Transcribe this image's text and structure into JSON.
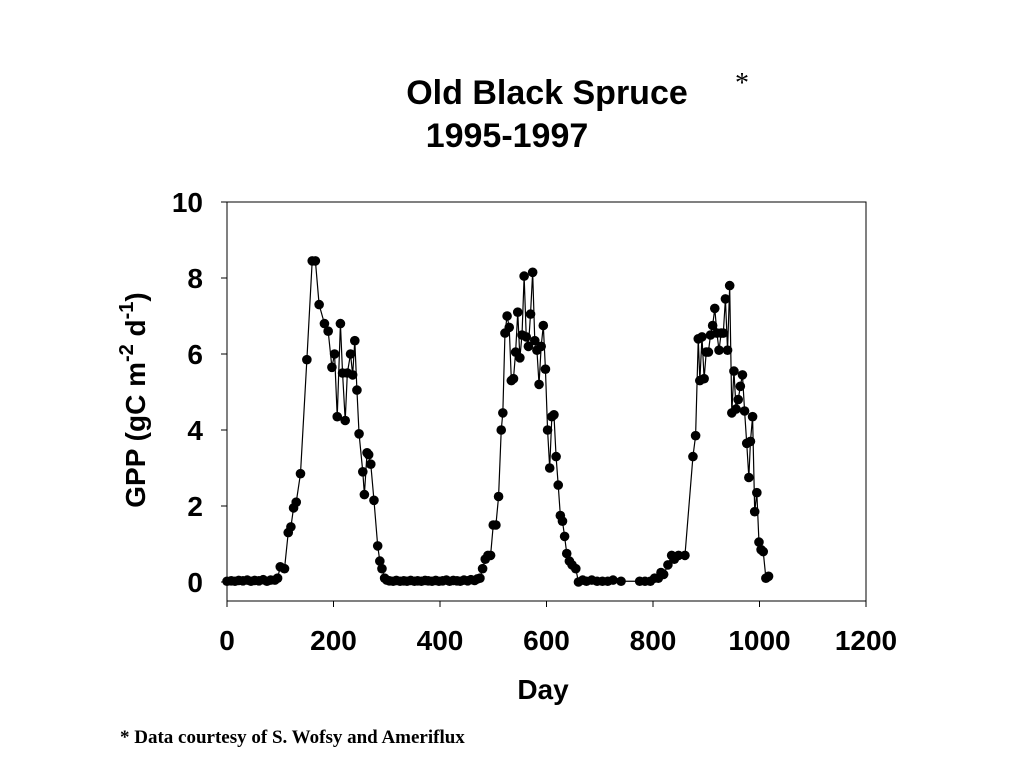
{
  "chart_data": {
    "type": "line",
    "title": "Old Black Spruce",
    "title_mark": "*",
    "subtitle": "1995-1997",
    "xlabel": "Day",
    "ylabel": [
      "GPP (gC m",
      "-2",
      " d",
      "-1",
      ")"
    ],
    "footnote": "* Data courtesy of S. Wofsy and Ameriflux",
    "xlim": [
      0,
      1200
    ],
    "xticks": [
      0,
      200,
      400,
      600,
      800,
      1000,
      1200
    ],
    "ylim": [
      -0.5,
      10
    ],
    "yticks": [
      0,
      2,
      4,
      6,
      8,
      10
    ],
    "grid": false,
    "series": [
      {
        "name": "GPP",
        "color": "#000000",
        "x": [
          0,
          8,
          15,
          22,
          30,
          38,
          45,
          52,
          60,
          68,
          75,
          82,
          90,
          95,
          100,
          108,
          115,
          120,
          125,
          130,
          138,
          150,
          160,
          166,
          173,
          183,
          190,
          197,
          202,
          207,
          213,
          217,
          222,
          226,
          232,
          236,
          240,
          244,
          248,
          255,
          258,
          263,
          266,
          270,
          276,
          283,
          287,
          291,
          296,
          300,
          305,
          312,
          318,
          325,
          332,
          338,
          345,
          352,
          358,
          365,
          372,
          378,
          385,
          392,
          398,
          405,
          412,
          418,
          425,
          432,
          438,
          445,
          452,
          458,
          465,
          470,
          475,
          480,
          485,
          490,
          495,
          500,
          505,
          510,
          515,
          518,
          522,
          526,
          530,
          534,
          538,
          542,
          546,
          550,
          554,
          558,
          562,
          566,
          570,
          574,
          578,
          582,
          586,
          590,
          594,
          598,
          602,
          606,
          610,
          614,
          618,
          622,
          626,
          630,
          634,
          638,
          643,
          648,
          655,
          660,
          668,
          675,
          685,
          695,
          705,
          715,
          725,
          740,
          775,
          785,
          795,
          803,
          810,
          815,
          820,
          828,
          835,
          840,
          848,
          860,
          875,
          880,
          885,
          888,
          892,
          896,
          900,
          904,
          908,
          912,
          916,
          920,
          924,
          928,
          932,
          936,
          940,
          944,
          948,
          952,
          956,
          960,
          964,
          968,
          972,
          976,
          980,
          983,
          987,
          991,
          995,
          999,
          1003,
          1007,
          1012,
          1017
        ],
        "values": [
          0.02,
          0.03,
          0.02,
          0.04,
          0.03,
          0.05,
          0.02,
          0.04,
          0.03,
          0.06,
          0.02,
          0.05,
          0.05,
          0.1,
          0.4,
          0.35,
          1.3,
          1.45,
          1.95,
          2.1,
          2.85,
          5.85,
          8.45,
          8.45,
          7.3,
          6.8,
          6.6,
          5.65,
          6.0,
          4.35,
          6.8,
          5.5,
          4.25,
          5.5,
          6.0,
          5.45,
          6.35,
          5.05,
          3.9,
          2.9,
          2.3,
          3.4,
          3.35,
          3.1,
          2.15,
          0.95,
          0.55,
          0.35,
          0.1,
          0.05,
          0.03,
          0.02,
          0.04,
          0.02,
          0.03,
          0.02,
          0.04,
          0.02,
          0.03,
          0.02,
          0.04,
          0.03,
          0.02,
          0.04,
          0.02,
          0.03,
          0.05,
          0.02,
          0.04,
          0.03,
          0.02,
          0.05,
          0.03,
          0.06,
          0.04,
          0.08,
          0.1,
          0.35,
          0.6,
          0.7,
          0.7,
          1.5,
          1.5,
          2.25,
          4.0,
          4.45,
          6.55,
          7.0,
          6.7,
          5.3,
          5.35,
          6.05,
          7.1,
          5.9,
          6.5,
          8.05,
          6.45,
          6.2,
          7.05,
          8.15,
          6.35,
          6.1,
          5.2,
          6.2,
          6.75,
          5.6,
          4.0,
          3.0,
          4.35,
          4.4,
          3.3,
          2.55,
          1.75,
          1.6,
          1.2,
          0.75,
          0.55,
          0.45,
          0.35,
          0.0,
          0.05,
          0.02,
          0.05,
          0.02,
          0.02,
          0.02,
          0.05,
          0.02,
          0.02,
          0.02,
          0.02,
          0.1,
          0.1,
          0.25,
          0.2,
          0.45,
          0.7,
          0.6,
          0.7,
          0.7,
          3.3,
          3.85,
          6.4,
          5.3,
          6.45,
          5.35,
          6.05,
          6.05,
          6.5,
          6.75,
          7.2,
          6.55,
          6.1,
          6.55,
          6.55,
          7.45,
          6.1,
          7.8,
          4.45,
          5.55,
          4.55,
          4.8,
          5.15,
          5.45,
          4.5,
          3.65,
          2.75,
          3.7,
          4.35,
          1.85,
          2.35,
          1.05,
          0.85,
          0.8,
          0.1,
          0.15
        ]
      }
    ]
  }
}
